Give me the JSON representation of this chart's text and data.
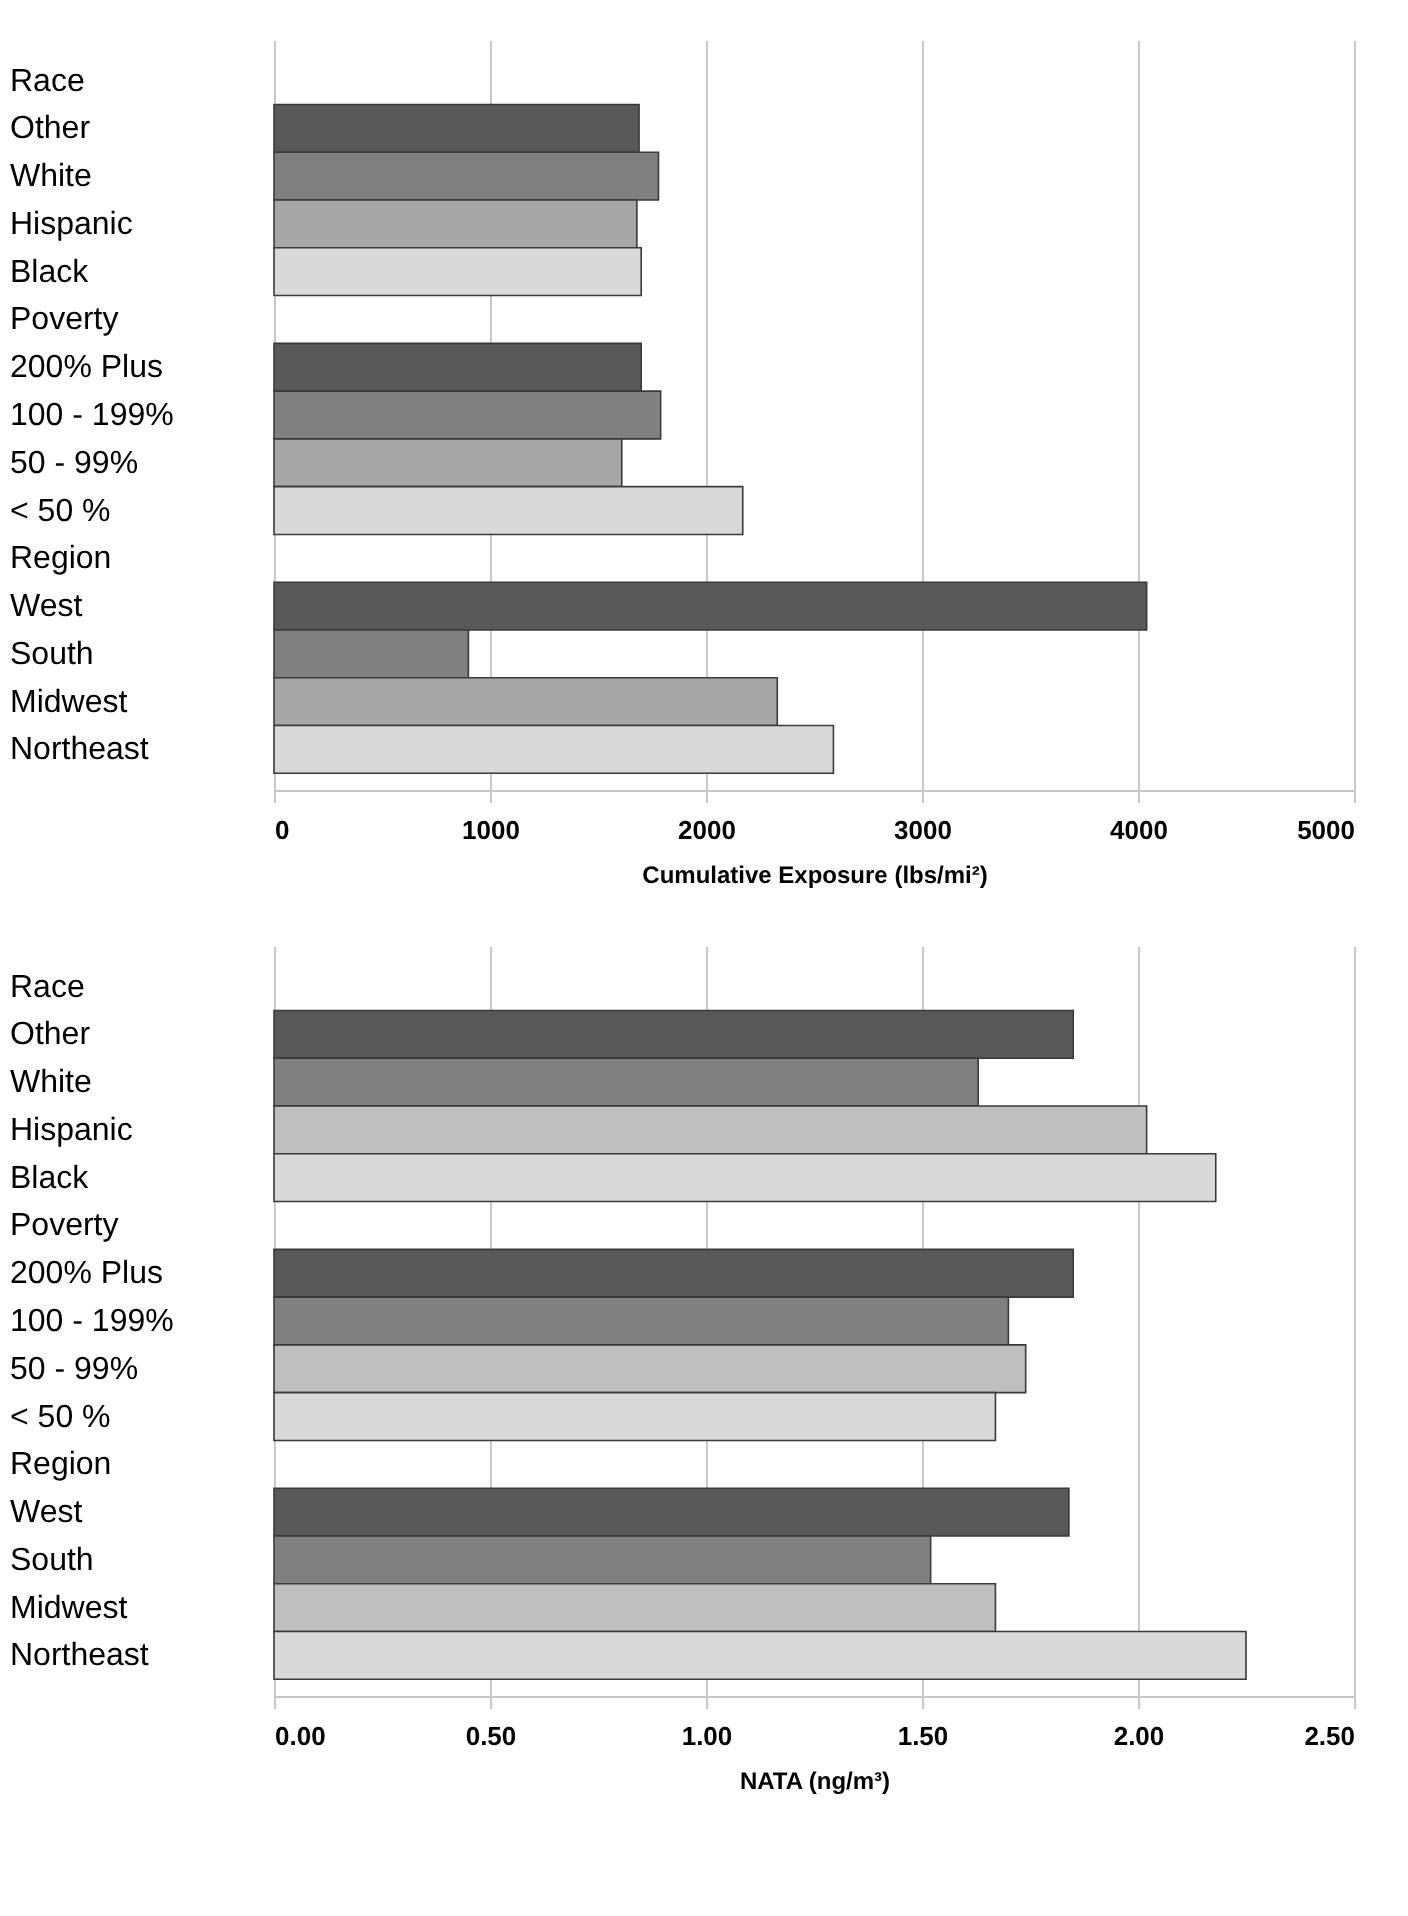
{
  "chart_data": [
    {
      "type": "bar",
      "orientation": "horizontal",
      "xlabel": "Cumulative Exposure (lbs/mi²)",
      "categories": [
        "Race",
        "Other",
        "White",
        "Hispanic",
        "Black",
        "Poverty",
        "200% Plus",
        "100 - 199%",
        "50 - 99%",
        "< 50 %",
        "Region",
        "West",
        "South",
        "Midwest",
        "Northeast"
      ],
      "values": [
        null,
        1690,
        1780,
        1680,
        1700,
        null,
        1700,
        1790,
        1610,
        2170,
        null,
        4040,
        900,
        2330,
        2590
      ],
      "colors": [
        null,
        "#595959",
        "#808080",
        "#a6a6a6",
        "#d9d9d9",
        null,
        "#595959",
        "#808080",
        "#a6a6a6",
        "#d9d9d9",
        null,
        "#595959",
        "#808080",
        "#a6a6a6",
        "#d9d9d9"
      ],
      "xlim": [
        0,
        5000
      ],
      "xticks": [
        0,
        1000,
        2000,
        3000,
        4000,
        5000
      ],
      "grid": "x"
    },
    {
      "type": "bar",
      "orientation": "horizontal",
      "xlabel": "NATA (ng/m³)",
      "categories": [
        "Race",
        "Other",
        "White",
        "Hispanic",
        "Black",
        "Poverty",
        "200% Plus",
        "100 - 199%",
        "50 - 99%",
        "< 50 %",
        "Region",
        "West",
        "South",
        "Midwest",
        "Northeast"
      ],
      "values": [
        null,
        1.85,
        1.63,
        2.02,
        2.18,
        null,
        1.85,
        1.7,
        1.74,
        1.67,
        null,
        1.84,
        1.52,
        1.67,
        2.25
      ],
      "colors": [
        null,
        "#595959",
        "#808080",
        "#bfbfbf",
        "#d9d9d9",
        null,
        "#595959",
        "#808080",
        "#bfbfbf",
        "#d9d9d9",
        null,
        "#595959",
        "#808080",
        "#bfbfbf",
        "#d9d9d9"
      ],
      "xlim": [
        0,
        2.5
      ],
      "xticks": [
        {
          "value": 0,
          "label": "0.00"
        },
        {
          "value": 0.5,
          "label": "0.50"
        },
        {
          "value": 1,
          "label": "1.00"
        },
        {
          "value": 1.5,
          "label": "1.50"
        },
        {
          "value": 2,
          "label": "2.00"
        },
        {
          "value": 2.5,
          "label": "2.50"
        }
      ],
      "grid": "x"
    }
  ]
}
